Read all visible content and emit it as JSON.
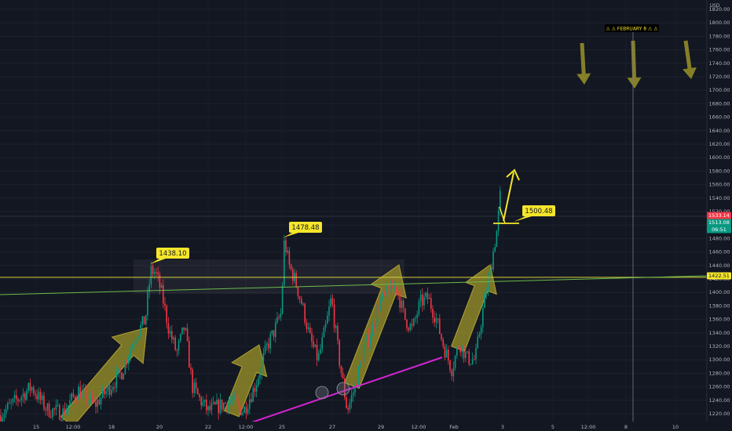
{
  "chart_data": {
    "type": "candlestick",
    "currency": "USD",
    "ylim": [
      1212,
      1820
    ],
    "y_ticks": [
      1220,
      1240,
      1260,
      1280,
      1300,
      1320,
      1340,
      1360,
      1380,
      1400,
      1420,
      1440,
      1460,
      1480,
      1500,
      1520,
      1540,
      1560,
      1580,
      1600,
      1620,
      1640,
      1660,
      1680,
      1700,
      1720,
      1740,
      1760,
      1780,
      1800,
      1820
    ],
    "x_ticks": [
      "15",
      "12:00",
      "18",
      "20",
      "22",
      "12:00",
      "25",
      "27",
      "29",
      "12:00",
      "Feb",
      "3",
      "5",
      "12:00",
      "8",
      "10"
    ],
    "grid": true,
    "price_badges": [
      {
        "label": "1533.14",
        "value": 1533.14,
        "color": "#f23645"
      },
      {
        "label": "1513.08",
        "value": 1513.08,
        "color": "#089981"
      },
      {
        "label": "06:51",
        "value": 1503.4,
        "color": "#089981"
      },
      {
        "label": "1422.51",
        "value": 1422.51,
        "color": "#f5e62b"
      }
    ],
    "annotations": [
      {
        "text": "1438.10",
        "value": 1438.1
      },
      {
        "text": "1478.48",
        "value": 1478.48
      },
      {
        "text": "1500.48",
        "value": 1500.48
      }
    ],
    "event_label": "⚠ ⚠ FEBRUARY 8 ⚠ ⚠",
    "horizontal_levels": [
      {
        "name": "resistance",
        "value": 1422.5,
        "color": "#d6d33b"
      },
      {
        "name": "current-price",
        "value": 1513,
        "color": "#2a2e39"
      }
    ],
    "trendlines": [
      {
        "name": "rising-support",
        "color": "#d125d1",
        "from": [
          1208,
          "15 Jan"
        ],
        "to": [
          1300,
          "31 Jan"
        ]
      },
      {
        "name": "horizontal-neckline",
        "color": "#6dbb4a",
        "from": [
          1398,
          "start"
        ],
        "to": [
          1422,
          "end"
        ]
      }
    ],
    "colors": {
      "up": "#089981",
      "down": "#f23645",
      "arrow": "#a39a2a",
      "background": "#131722"
    },
    "price_path": [
      [
        0,
        1218
      ],
      [
        40,
        1260
      ],
      [
        60,
        1226
      ],
      [
        80,
        1222
      ],
      [
        100,
        1255
      ],
      [
        120,
        1232
      ],
      [
        140,
        1260
      ],
      [
        155,
        1282
      ],
      [
        170,
        1330
      ],
      [
        185,
        1360
      ],
      [
        192,
        1432
      ],
      [
        198,
        1430
      ],
      [
        206,
        1398
      ],
      [
        215,
        1345
      ],
      [
        225,
        1310
      ],
      [
        235,
        1350
      ],
      [
        245,
        1260
      ],
      [
        255,
        1240
      ],
      [
        265,
        1224
      ],
      [
        280,
        1232
      ],
      [
        295,
        1240
      ],
      [
        310,
        1224
      ],
      [
        325,
        1262
      ],
      [
        340,
        1320
      ],
      [
        350,
        1345
      ],
      [
        358,
        1370
      ],
      [
        362,
        1478
      ],
      [
        368,
        1440
      ],
      [
        375,
        1420
      ],
      [
        385,
        1380
      ],
      [
        395,
        1330
      ],
      [
        405,
        1300
      ],
      [
        415,
        1350
      ],
      [
        422,
        1392
      ],
      [
        432,
        1300
      ],
      [
        442,
        1225
      ],
      [
        452,
        1260
      ],
      [
        462,
        1310
      ],
      [
        472,
        1340
      ],
      [
        482,
        1380
      ],
      [
        495,
        1405
      ],
      [
        505,
        1408
      ],
      [
        515,
        1362
      ],
      [
        525,
        1345
      ],
      [
        535,
        1385
      ],
      [
        545,
        1392
      ],
      [
        555,
        1362
      ],
      [
        565,
        1320
      ],
      [
        575,
        1286
      ],
      [
        585,
        1326
      ],
      [
        595,
        1302
      ],
      [
        605,
        1300
      ],
      [
        615,
        1375
      ],
      [
        625,
        1440
      ],
      [
        633,
        1495
      ],
      [
        637,
        1545
      ],
      [
        640,
        1513
      ]
    ]
  }
}
